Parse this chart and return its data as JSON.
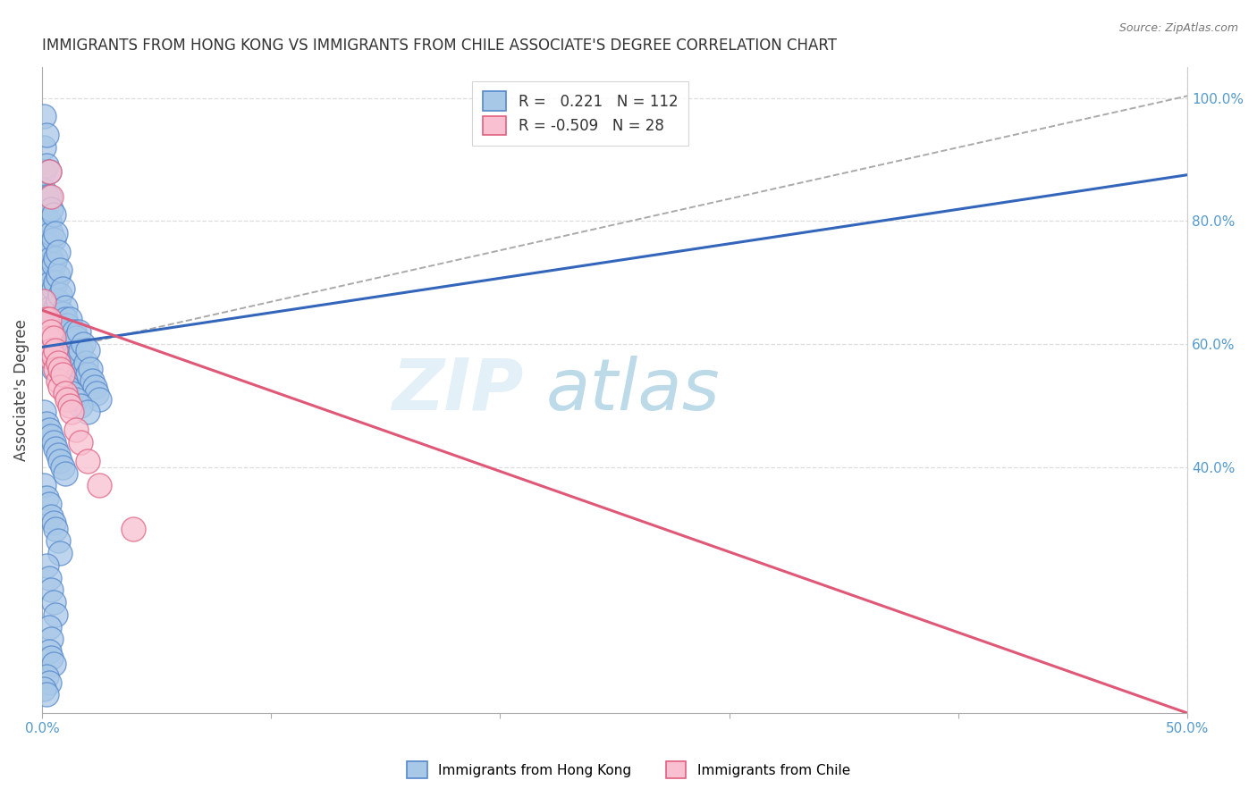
{
  "title": "IMMIGRANTS FROM HONG KONG VS IMMIGRANTS FROM CHILE ASSOCIATE'S DEGREE CORRELATION CHART",
  "source_text": "Source: ZipAtlas.com",
  "ylabel": "Associate's Degree",
  "xmin": 0.0,
  "xmax": 0.5,
  "ymin": 0.0,
  "ymax": 1.05,
  "hk_R": 0.221,
  "hk_N": 112,
  "chile_R": -0.509,
  "chile_N": 28,
  "hk_color": "#a8c8e8",
  "hk_edge_color": "#5588cc",
  "chile_color": "#f8c0d0",
  "chile_edge_color": "#e06080",
  "hk_line_color": "#3366bb",
  "chile_line_color": "#e05878",
  "grid_color": "#dddddd",
  "tick_color": "#5599cc",
  "hk_line": [
    0.0,
    0.5,
    0.595,
    0.875
  ],
  "chile_line": [
    0.0,
    0.5,
    0.655,
    0.0
  ],
  "dash_line": [
    0.0,
    0.52,
    0.585,
    1.02
  ],
  "hk_scatter_x": [
    0.001,
    0.001,
    0.001,
    0.001,
    0.001,
    0.002,
    0.002,
    0.002,
    0.002,
    0.002,
    0.002,
    0.003,
    0.003,
    0.003,
    0.003,
    0.003,
    0.003,
    0.003,
    0.004,
    0.004,
    0.004,
    0.004,
    0.004,
    0.005,
    0.005,
    0.005,
    0.005,
    0.005,
    0.006,
    0.006,
    0.006,
    0.006,
    0.007,
    0.007,
    0.007,
    0.007,
    0.008,
    0.008,
    0.008,
    0.008,
    0.009,
    0.009,
    0.009,
    0.01,
    0.01,
    0.01,
    0.01,
    0.011,
    0.011,
    0.012,
    0.012,
    0.012,
    0.013,
    0.014,
    0.014,
    0.015,
    0.015,
    0.016,
    0.016,
    0.017,
    0.018,
    0.018,
    0.019,
    0.02,
    0.02,
    0.021,
    0.022,
    0.023,
    0.024,
    0.025,
    0.003,
    0.005,
    0.007,
    0.009,
    0.01,
    0.011,
    0.013,
    0.015,
    0.017,
    0.02,
    0.001,
    0.002,
    0.003,
    0.004,
    0.005,
    0.006,
    0.007,
    0.008,
    0.009,
    0.01,
    0.001,
    0.002,
    0.003,
    0.004,
    0.005,
    0.006,
    0.007,
    0.008,
    0.002,
    0.003,
    0.004,
    0.005,
    0.006,
    0.003,
    0.004,
    0.003,
    0.004,
    0.005,
    0.002,
    0.003,
    0.001,
    0.002
  ],
  "hk_scatter_y": [
    0.97,
    0.92,
    0.88,
    0.85,
    0.78,
    0.94,
    0.89,
    0.84,
    0.8,
    0.76,
    0.72,
    0.88,
    0.84,
    0.8,
    0.76,
    0.72,
    0.68,
    0.64,
    0.82,
    0.78,
    0.74,
    0.7,
    0.66,
    0.81,
    0.77,
    0.73,
    0.69,
    0.65,
    0.78,
    0.74,
    0.7,
    0.66,
    0.75,
    0.71,
    0.67,
    0.63,
    0.72,
    0.68,
    0.64,
    0.6,
    0.69,
    0.65,
    0.61,
    0.66,
    0.62,
    0.58,
    0.64,
    0.63,
    0.59,
    0.62,
    0.58,
    0.64,
    0.6,
    0.58,
    0.62,
    0.57,
    0.61,
    0.58,
    0.62,
    0.59,
    0.56,
    0.6,
    0.57,
    0.55,
    0.59,
    0.56,
    0.54,
    0.53,
    0.52,
    0.51,
    0.59,
    0.56,
    0.57,
    0.55,
    0.54,
    0.53,
    0.52,
    0.51,
    0.5,
    0.49,
    0.49,
    0.47,
    0.46,
    0.45,
    0.44,
    0.43,
    0.42,
    0.41,
    0.4,
    0.39,
    0.37,
    0.35,
    0.34,
    0.32,
    0.31,
    0.3,
    0.28,
    0.26,
    0.24,
    0.22,
    0.2,
    0.18,
    0.16,
    0.14,
    0.12,
    0.1,
    0.09,
    0.08,
    0.06,
    0.05,
    0.04,
    0.03
  ],
  "chile_scatter_x": [
    0.001,
    0.002,
    0.002,
    0.003,
    0.003,
    0.003,
    0.004,
    0.004,
    0.005,
    0.005,
    0.006,
    0.006,
    0.007,
    0.007,
    0.008,
    0.008,
    0.009,
    0.01,
    0.011,
    0.012,
    0.013,
    0.015,
    0.017,
    0.02,
    0.025,
    0.04,
    0.003,
    0.004
  ],
  "chile_scatter_y": [
    0.67,
    0.64,
    0.61,
    0.64,
    0.61,
    0.58,
    0.62,
    0.59,
    0.61,
    0.58,
    0.59,
    0.56,
    0.57,
    0.54,
    0.56,
    0.53,
    0.55,
    0.52,
    0.51,
    0.5,
    0.49,
    0.46,
    0.44,
    0.41,
    0.37,
    0.3,
    0.88,
    0.84
  ]
}
